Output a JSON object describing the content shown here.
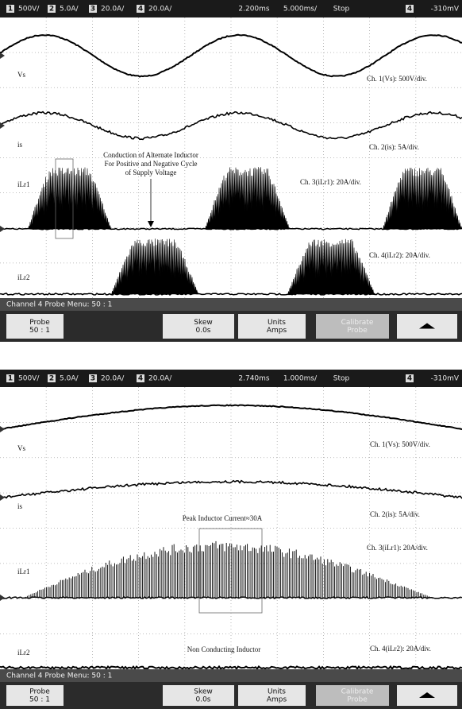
{
  "panels": [
    {
      "header": {
        "channels": [
          {
            "num": "1",
            "scale": "500V/"
          },
          {
            "num": "2",
            "scale": "5.0A/"
          },
          {
            "num": "3",
            "scale": "20.0A/"
          },
          {
            "num": "4",
            "scale": "20.0A/"
          }
        ],
        "delay": "2.200ms",
        "timebase": "5.000ms/",
        "status": "Stop",
        "trigger_channel": "4",
        "trigger_level": "-310mV"
      },
      "labels": {
        "vs": "Vs",
        "ch1": "Ch. 1(Vs): 500V/div.",
        "is": "is",
        "ch2": "Ch. 2(is): 5A/div.",
        "il1": "iLr1",
        "ch3": "Ch. 3(iLr1): 20A/div.",
        "il2": "iLr2",
        "ch4": "Ch. 4(iLr2): 20A/div."
      },
      "annotations": [
        "Conduction of Alternate Inductor",
        "For Positive and Negative Cycle",
        "of Supply Voltage"
      ],
      "menu": "Channel 4 Probe Menu: 50 : 1",
      "softkeys": [
        [
          "Probe",
          "50 : 1"
        ],
        [
          "Skew",
          "0.0s"
        ],
        [
          "Units",
          "Amps"
        ],
        [
          "Calibrate",
          "Probe"
        ]
      ]
    },
    {
      "header": {
        "channels": [
          {
            "num": "1",
            "scale": "500V/"
          },
          {
            "num": "2",
            "scale": "5.0A/"
          },
          {
            "num": "3",
            "scale": "20.0A/"
          },
          {
            "num": "4",
            "scale": "20.0A/"
          }
        ],
        "delay": "2.740ms",
        "timebase": "1.000ms/",
        "status": "Stop",
        "trigger_channel": "4",
        "trigger_level": "-310mV"
      },
      "labels": {
        "vs": "Vs",
        "ch1": "Ch. 1(Vs): 500V/div.",
        "is": "is",
        "ch2": "Ch. 2(is): 5A/div.",
        "il1": "iLr1",
        "ch3": "Ch. 3(iLr1): 20A/div.",
        "il2": "iLr2",
        "ch4": "Ch. 4(iLr2): 20A/div."
      },
      "annotations": [
        "Peak Inductor Current≈30A",
        "Non Conducting Inductor"
      ],
      "menu": "Channel 4 Probe Menu: 50 : 1",
      "softkeys": [
        [
          "Probe",
          "50 : 1"
        ],
        [
          "Skew",
          "0.0s"
        ],
        [
          "Units",
          "Amps"
        ],
        [
          "Calibrate",
          "Probe"
        ]
      ]
    }
  ]
}
